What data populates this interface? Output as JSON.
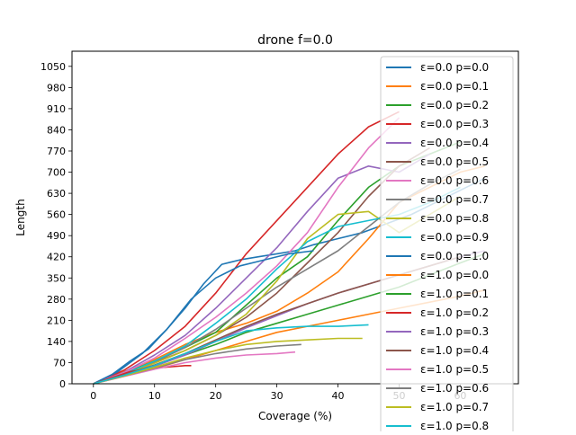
{
  "chart_data": {
    "type": "line",
    "title": "drone f=0.0",
    "xlabel": "Coverage (%)",
    "ylabel": "Length",
    "xlim": [
      -3.5,
      69.5
    ],
    "ylim": [
      0,
      1100
    ],
    "x_ticks": [
      0,
      10,
      20,
      30,
      40,
      50,
      60
    ],
    "y_ticks": [
      0,
      70,
      140,
      210,
      280,
      350,
      420,
      490,
      560,
      630,
      700,
      770,
      840,
      910,
      980,
      1050
    ],
    "grid": false,
    "legend_position": "upper right",
    "series": [
      {
        "name": "ε=0.0 p=0.0",
        "color": "#1f77b4",
        "x": [
          0,
          3,
          6,
          9,
          12,
          15,
          18,
          21,
          24,
          27,
          30,
          33,
          36,
          40,
          44,
          48,
          52,
          56,
          60,
          64
        ],
        "y": [
          0,
          30,
          75,
          115,
          180,
          250,
          330,
          395,
          410,
          420,
          430,
          440,
          460,
          480,
          500,
          530,
          560,
          600,
          640,
          680
        ]
      },
      {
        "name": "ε=0.0 p=0.1",
        "color": "#ff7f0e",
        "x": [
          0,
          5,
          10,
          15,
          20,
          25,
          30,
          35,
          40,
          45,
          50,
          55,
          60,
          64
        ],
        "y": [
          0,
          40,
          80,
          130,
          170,
          200,
          240,
          300,
          370,
          480,
          600,
          650,
          700,
          720
        ]
      },
      {
        "name": "ε=0.0 p=0.2",
        "color": "#2ca02c",
        "x": [
          0,
          5,
          10,
          15,
          20,
          25,
          30,
          35,
          40,
          45,
          50,
          55,
          60
        ],
        "y": [
          0,
          35,
          75,
          120,
          170,
          260,
          350,
          420,
          540,
          650,
          720,
          760,
          800
        ]
      },
      {
        "name": "ε=0.0 p=0.3",
        "color": "#d62728",
        "x": [
          0,
          5,
          10,
          15,
          20,
          25,
          30,
          35,
          40,
          45,
          50
        ],
        "y": [
          0,
          45,
          110,
          190,
          300,
          430,
          540,
          650,
          760,
          850,
          900
        ]
      },
      {
        "name": "ε=0.0 p=0.4",
        "color": "#9467bd",
        "x": [
          0,
          5,
          10,
          15,
          20,
          25,
          30,
          35,
          40,
          45,
          50,
          55
        ],
        "y": [
          0,
          38,
          95,
          160,
          250,
          350,
          450,
          570,
          680,
          720,
          700,
          760
        ]
      },
      {
        "name": "ε=0.0 p=0.5",
        "color": "#8c564b",
        "x": [
          0,
          5,
          10,
          15,
          20,
          25,
          30,
          35,
          40,
          45,
          50,
          55
        ],
        "y": [
          0,
          30,
          70,
          110,
          160,
          220,
          300,
          400,
          500,
          620,
          720,
          780
        ]
      },
      {
        "name": "ε=0.0 p=0.6",
        "color": "#e377c2",
        "x": [
          0,
          5,
          10,
          15,
          20,
          25,
          30,
          35,
          40,
          45,
          50
        ],
        "y": [
          0,
          36,
          85,
          150,
          220,
          300,
          390,
          500,
          650,
          780,
          880
        ]
      },
      {
        "name": "ε=0.0 p=0.7",
        "color": "#7f7f7f",
        "x": [
          0,
          5,
          10,
          15,
          20,
          25,
          30,
          35,
          40,
          45,
          50,
          55,
          60
        ],
        "y": [
          0,
          33,
          72,
          120,
          180,
          250,
          320,
          380,
          440,
          520,
          600,
          660,
          710
        ]
      },
      {
        "name": "ε=0.0 p=0.8",
        "color": "#bcbd22",
        "x": [
          0,
          5,
          10,
          15,
          20,
          25,
          30,
          35,
          40,
          45,
          50,
          55,
          60
        ],
        "y": [
          0,
          30,
          68,
          110,
          160,
          230,
          340,
          480,
          560,
          570,
          500,
          560,
          620
        ]
      },
      {
        "name": "ε=0.0 p=0.9",
        "color": "#17becf",
        "x": [
          0,
          5,
          10,
          15,
          20,
          25,
          30,
          35,
          40,
          45,
          50,
          55,
          60
        ],
        "y": [
          0,
          32,
          75,
          125,
          200,
          280,
          380,
          470,
          520,
          540,
          560,
          600,
          650
        ]
      },
      {
        "name": "ε=0.0 p=1.0",
        "color": "#1f77b4",
        "x": [
          0,
          4,
          8,
          12,
          16,
          20,
          24,
          28,
          32,
          36
        ],
        "y": [
          0,
          40,
          100,
          180,
          280,
          350,
          390,
          410,
          430,
          440
        ]
      },
      {
        "name": "ε=1.0 p=0.0",
        "color": "#ff7f0e",
        "x": [
          0,
          5,
          10,
          15,
          20,
          25,
          30,
          35,
          40,
          45,
          50,
          55,
          60,
          64
        ],
        "y": [
          0,
          25,
          50,
          80,
          110,
          140,
          170,
          190,
          210,
          230,
          250,
          270,
          290,
          310
        ]
      },
      {
        "name": "ε=1.0 p=0.1",
        "color": "#2ca02c",
        "x": [
          0,
          5,
          10,
          15,
          20,
          25,
          30,
          35,
          40,
          45,
          50,
          55,
          60,
          64
        ],
        "y": [
          0,
          30,
          60,
          95,
          130,
          170,
          200,
          230,
          260,
          290,
          320,
          360,
          400,
          430
        ]
      },
      {
        "name": "ε=1.0 p=0.2",
        "color": "#d62728",
        "x": [
          0,
          3,
          6,
          9,
          12,
          15,
          16
        ],
        "y": [
          0,
          20,
          40,
          50,
          55,
          60,
          60
        ]
      },
      {
        "name": "ε=1.0 p=0.3",
        "color": "#9467bd",
        "x": [
          0,
          5,
          10,
          15,
          20,
          25,
          30,
          35,
          40,
          45,
          50,
          55,
          60,
          64
        ],
        "y": [
          0,
          28,
          58,
          95,
          140,
          185,
          225,
          265,
          300,
          330,
          360,
          390,
          420,
          440
        ]
      },
      {
        "name": "ε=1.0 p=0.4",
        "color": "#8c564b",
        "x": [
          0,
          5,
          10,
          15,
          20,
          25,
          30,
          35,
          40,
          45,
          50,
          55,
          60
        ],
        "y": [
          0,
          30,
          62,
          100,
          145,
          190,
          230,
          265,
          300,
          330,
          360,
          390,
          420
        ]
      },
      {
        "name": "ε=1.0 p=0.5",
        "color": "#e377c2",
        "x": [
          0,
          5,
          10,
          15,
          20,
          25,
          30,
          33
        ],
        "y": [
          0,
          24,
          48,
          70,
          85,
          95,
          100,
          105
        ]
      },
      {
        "name": "ε=1.0 p=0.6",
        "color": "#7f7f7f",
        "x": [
          0,
          5,
          10,
          15,
          20,
          25,
          30,
          34
        ],
        "y": [
          0,
          26,
          52,
          80,
          100,
          115,
          125,
          130
        ]
      },
      {
        "name": "ε=1.0 p=0.7",
        "color": "#bcbd22",
        "x": [
          0,
          5,
          10,
          15,
          20,
          25,
          30,
          35,
          40,
          44
        ],
        "y": [
          0,
          26,
          54,
          85,
          110,
          130,
          140,
          145,
          150,
          150
        ]
      },
      {
        "name": "ε=1.0 p=0.8",
        "color": "#17becf",
        "x": [
          0,
          5,
          10,
          15,
          20,
          25,
          30,
          35,
          40,
          45
        ],
        "y": [
          0,
          28,
          60,
          100,
          140,
          175,
          185,
          190,
          190,
          195
        ]
      }
    ]
  }
}
